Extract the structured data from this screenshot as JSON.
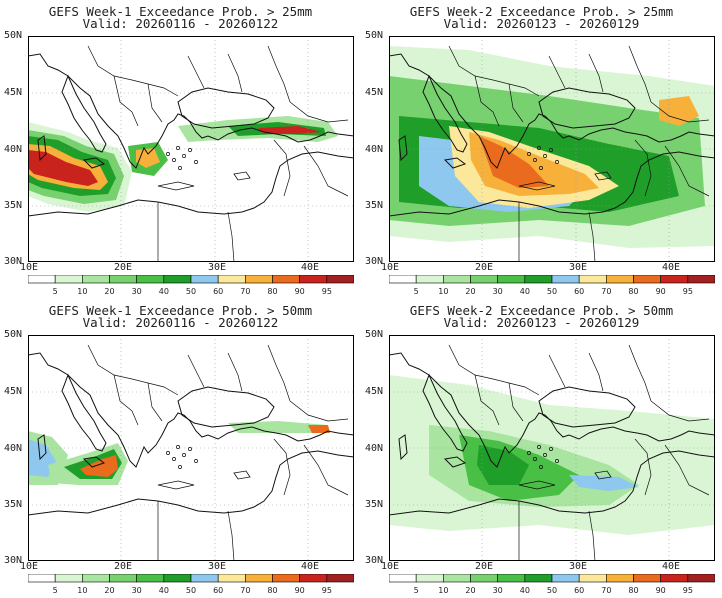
{
  "panels": [
    {
      "title_line1": "GEFS Week-1 Exceedance Prob. > 25mm",
      "title_line2": "Valid: 20260116 - 20260122",
      "intensity": "high1"
    },
    {
      "title_line1": "GEFS Week-2 Exceedance Prob. > 25mm",
      "title_line2": "Valid: 20260123 - 20260129",
      "intensity": "high2"
    },
    {
      "title_line1": "GEFS Week-1 Exceedance Prob. > 50mm",
      "title_line2": "Valid: 20260116 - 20260122",
      "intensity": "low1"
    },
    {
      "title_line1": "GEFS Week-2 Exceedance Prob. > 50mm",
      "title_line2": "Valid: 20260123 - 20260129",
      "intensity": "low2"
    }
  ],
  "axes": {
    "lat_labels": [
      "50N",
      "45N",
      "40N",
      "35N",
      "30N"
    ],
    "lon_labels": [
      "10E",
      "20E",
      "30E",
      "40E"
    ]
  },
  "colorbar": {
    "labels": [
      "5",
      "10",
      "20",
      "30",
      "40",
      "50",
      "60",
      "70",
      "80",
      "90",
      "95"
    ],
    "colors": [
      "#ffffff",
      "#d9f5d3",
      "#a9e5a0",
      "#78d16f",
      "#49bf46",
      "#1f9e2a",
      "#8fc8ee",
      "#fbe89a",
      "#f7b13a",
      "#ea6a1e",
      "#c9231e",
      "#a32020"
    ]
  }
}
